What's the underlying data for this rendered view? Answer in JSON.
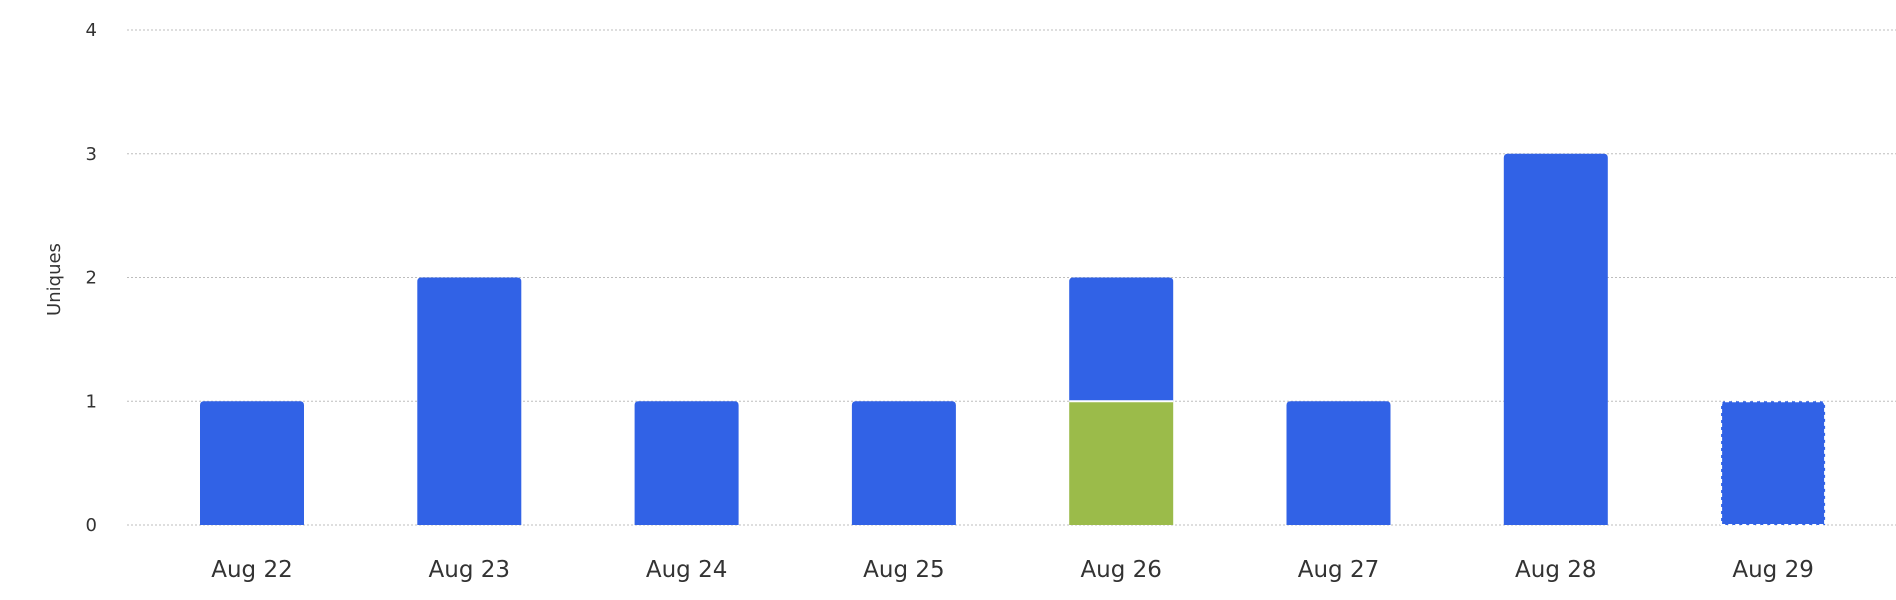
{
  "chart_data": {
    "type": "bar",
    "stacked": true,
    "ylabel": "Uniques",
    "xlabel": "",
    "ylim": [
      0,
      4
    ],
    "yticks": [
      0,
      1,
      2,
      3,
      4
    ],
    "grid": true,
    "categories": [
      "Aug 22",
      "Aug 23",
      "Aug 24",
      "Aug 25",
      "Aug 26",
      "Aug 27",
      "Aug 28",
      "Aug 29"
    ],
    "series": [
      {
        "values": [
          0,
          0,
          0,
          0,
          1,
          0,
          0,
          0
        ],
        "color": "#9bbb4a"
      },
      {
        "values": [
          1,
          2,
          1,
          1,
          1,
          1,
          3,
          1
        ],
        "color": "#3162e6"
      }
    ],
    "incomplete_last_point": true
  }
}
